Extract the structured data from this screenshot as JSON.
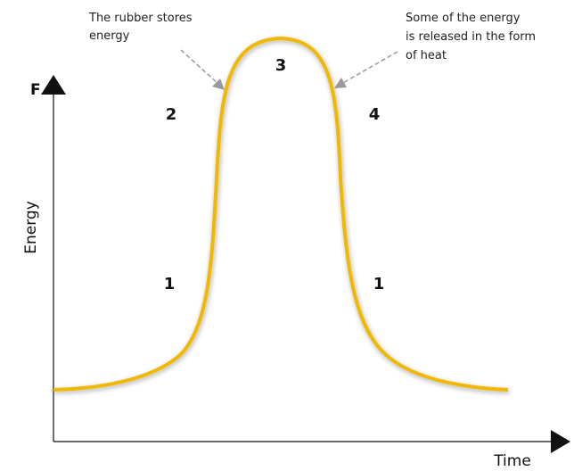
{
  "axes": {
    "y_symbol": "F",
    "y_label": "Energy",
    "x_label": "Time"
  },
  "regions": [
    "1",
    "2",
    "3",
    "4",
    "1"
  ],
  "annotations": [
    {
      "lines": [
        "The rubber stores",
        "energy"
      ]
    },
    {
      "lines": [
        "Some of the energy",
        "is released in the form",
        "of heat"
      ]
    }
  ]
}
